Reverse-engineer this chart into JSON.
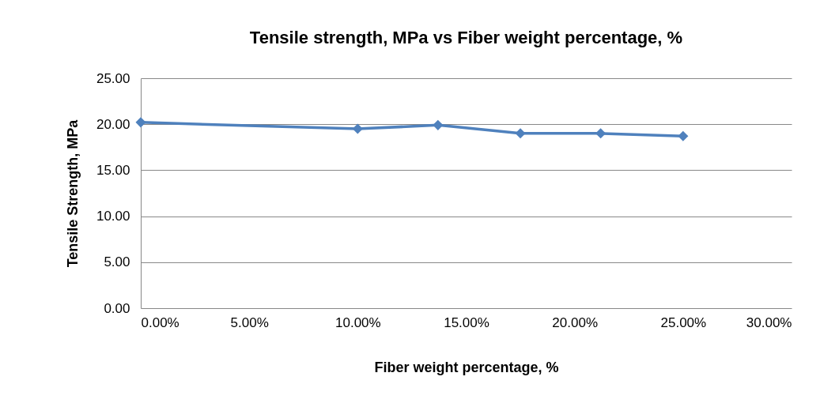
{
  "chart_data": {
    "type": "line",
    "title": "Tensile strength, MPa vs Fiber weight percentage, %",
    "xlabel": "Fiber weight percentage, %",
    "ylabel": "Tensile Strength, MPa",
    "x": [
      0,
      10.0,
      13.7,
      17.5,
      21.2,
      25.0
    ],
    "series": [
      {
        "color": "#4f81bd",
        "values": [
          20.2,
          19.5,
          19.9,
          19.0,
          19.0,
          18.7
        ]
      }
    ],
    "xlim": [
      0,
      30
    ],
    "xticks": [
      {
        "value": 0,
        "label": "0.00%"
      },
      {
        "value": 5,
        "label": "5.00%"
      },
      {
        "value": 10,
        "label": "10.00%"
      },
      {
        "value": 15,
        "label": "15.00%"
      },
      {
        "value": 20,
        "label": "20.00%"
      },
      {
        "value": 25,
        "label": "25.00%"
      },
      {
        "value": 30,
        "label": "30.00%"
      }
    ],
    "ylim": [
      0,
      25
    ],
    "yticks": [
      {
        "value": 0,
        "label": "0.00"
      },
      {
        "value": 5,
        "label": "5.00"
      },
      {
        "value": 10,
        "label": "10.00"
      },
      {
        "value": 15,
        "label": "15.00"
      },
      {
        "value": 20,
        "label": "20.00"
      },
      {
        "value": 25,
        "label": "25.00"
      }
    ],
    "grid": "y",
    "marker": "diamond",
    "line_style": "solid",
    "legend": false
  }
}
